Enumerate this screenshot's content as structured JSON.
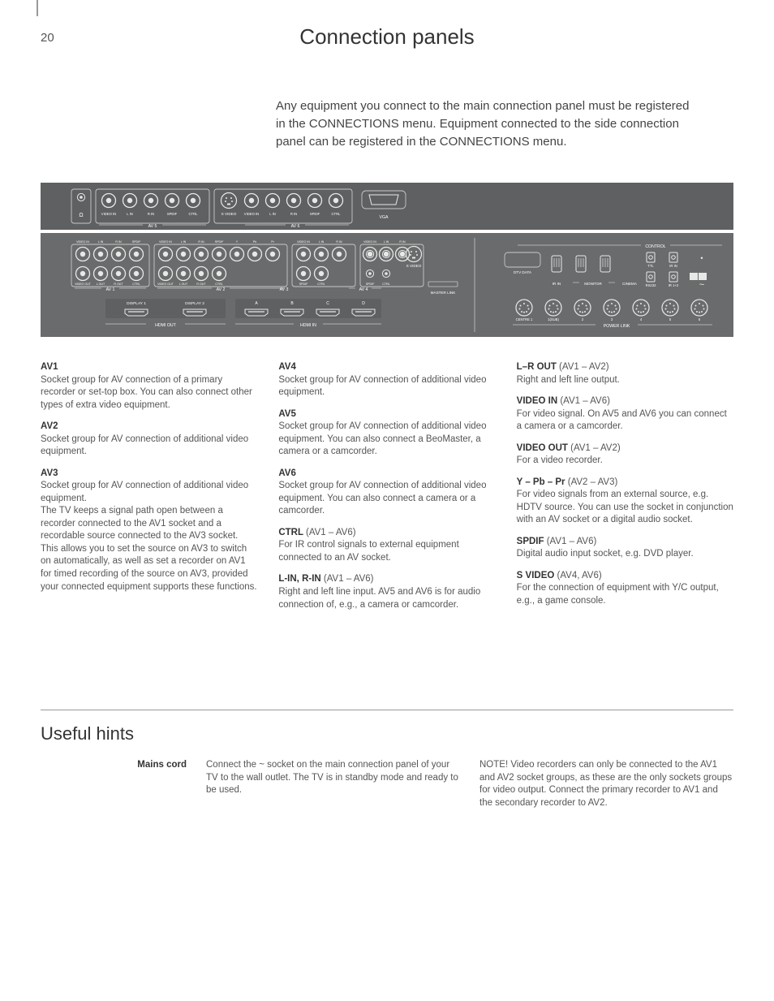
{
  "page_number": "20",
  "title": "Connection panels",
  "intro": "Any equipment you connect to the main connection panel must be registered in the CONNECTIONS menu. Equipment connected to the side connection panel can be registered in the CONNECTIONS menu.",
  "diagram": {
    "background_top": "#5f6061",
    "background_bottom": "#6a6b6c",
    "line_color": "#d9d9d9",
    "text_color": "#ffffff",
    "pin_outline": "#e8e8e8",
    "label_fontsize": 5.2,
    "section_labels": {
      "av5": "AV 5",
      "av6": "AV 6",
      "vga": "VGA",
      "av1": "AV 1",
      "av2": "AV 2",
      "av3": "AV 3",
      "av4": "AV 4",
      "svideo": "S VIDEO",
      "masterlink": "MASTER LINK",
      "hdmi_out": "HDMI  OUT",
      "hdmi_in": "HDMI  IN",
      "display1": "DISPLAY 1",
      "display2": "DISPLAY 2",
      "abcd": [
        "A",
        "B",
        "C",
        "D"
      ],
      "control": "CONTROL",
      "dtvdata": "DTV DATA",
      "irin": "IR IN",
      "monitor": "MONITOR",
      "cinema": "CINEMA",
      "ttl": "TTL",
      "irin2": "IR IN",
      "rs232": "RS232",
      "ir12": "IR 1+2",
      "powerlink": "POWER LINK",
      "centre": "CENTRE 1",
      "sub": "1(SUB)",
      "pl": [
        "2",
        "3",
        "4",
        "5",
        "6"
      ]
    },
    "top_row_pins": {
      "headphone": "Ω",
      "av5": [
        "VIDEO IN",
        "L IN",
        "R IN",
        "SPDIF",
        "CTRL"
      ],
      "svideo": "S VIDEO",
      "av6": [
        "VIDEO IN",
        "L IN",
        "R IN",
        "SPDIF",
        "CTRL"
      ]
    },
    "mid_rows": {
      "av1_top": [
        "VIDEO IN",
        "L IN",
        "R IN",
        "SPDIF"
      ],
      "av1_bot": [
        "VIDEO OUT",
        "L OUT",
        "R OUT",
        "CTRL"
      ],
      "av2_top": [
        "VIDEO IN",
        "L IN",
        "R IN",
        "SPDIF",
        "Y",
        "Pb",
        "Pr"
      ],
      "av2_bot": [
        "VIDEO OUT",
        "L OUT",
        "R OUT",
        "CTRL"
      ],
      "av3_top": [
        "VIDEO IN",
        "L IN",
        "R IN",
        "Y",
        "Pb",
        "Pr"
      ],
      "av3_bot": [
        "SPDIF",
        "CTRL"
      ],
      "av4_top": [
        "VIDEO IN",
        "L IN",
        "R IN"
      ],
      "av4_bot": [
        "SPDIF",
        "CTRL"
      ]
    }
  },
  "col1": [
    {
      "head": "AV1",
      "body": "Socket group for AV connection of a primary recorder or set-top box. You can also connect other types of extra video equipment."
    },
    {
      "head": "AV2",
      "body": "Socket group for AV connection of additional video equipment."
    },
    {
      "head": "AV3",
      "body": "Socket group for AV connection of additional video equipment.\nThe TV keeps a signal path open between a recorder connected to the AV1 socket and a recordable source connected to the AV3 socket. This allows you to set the source on AV3 to switch on automatically, as well as set a recorder on AV1 for timed recording of the source on AV3, provided your connected equipment supports these functions."
    }
  ],
  "col2": [
    {
      "head": "AV4",
      "body": "Socket group for AV connection of additional video equipment."
    },
    {
      "head": "AV5",
      "body": "Socket group for AV connection of additional video equipment. You can also connect a BeoMaster, a camera or a camcorder."
    },
    {
      "head": "AV6",
      "body": "Socket group for AV connection of additional video equipment. You can also connect a camera or a camcorder."
    },
    {
      "inline": "CTRL",
      "paren": "(AV1 – AV6)",
      "body": "For IR control signals to external equipment connected to an AV socket."
    },
    {
      "inline": "L-IN, R-IN",
      "paren": "(AV1 – AV6)",
      "body": "Right and left line input. AV5 and AV6 is for audio connection of, e.g., a camera or camcorder."
    }
  ],
  "col3": [
    {
      "inline": "L–R OUT",
      "paren": "(AV1 – AV2)",
      "body": "Right and left line output."
    },
    {
      "inline": "VIDEO IN",
      "paren": "(AV1 – AV6)",
      "body": "For video signal. On AV5 and AV6 you can connect a camera or a camcorder."
    },
    {
      "inline": "VIDEO OUT",
      "paren": "(AV1 – AV2)",
      "body": "For a video recorder."
    },
    {
      "inline": "Y – Pb – Pr",
      "paren": "(AV2 – AV3)",
      "body": "For video signals from an external source, e.g. HDTV source. You can use the socket in conjunction with an AV socket or a digital audio socket."
    },
    {
      "inline": "SPDIF",
      "paren": "(AV1 – AV6)",
      "body": "Digital audio input socket, e.g. DVD player."
    },
    {
      "inline": "S VIDEO",
      "paren": "(AV4, AV6)",
      "body": "For the connection of equipment with Y/C output, e.g., a game console."
    }
  ],
  "hints": {
    "title": "Useful hints",
    "label": "Mains cord",
    "text": "Connect the ~ socket on the main connection panel of your TV to the wall outlet. The TV is in standby mode and ready to be used.",
    "note": "NOTE! Video recorders can only be connected to the AV1 and AV2 socket groups, as these are the only sockets groups for video output. Connect the primary recorder to AV1 and the secondary recorder to AV2."
  }
}
